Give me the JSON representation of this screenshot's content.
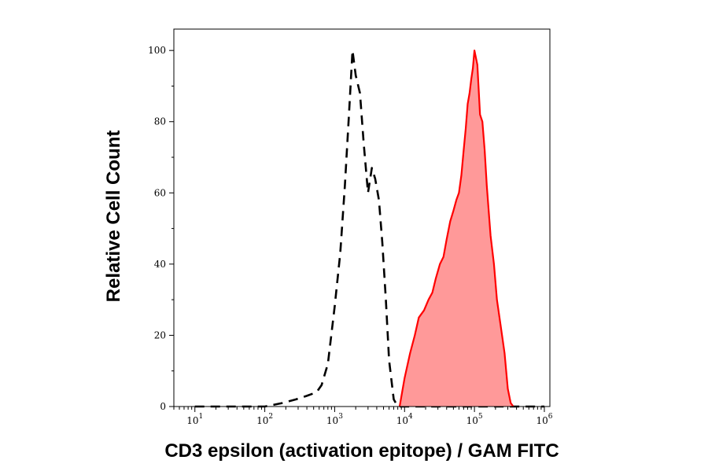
{
  "chart_data": {
    "type": "area",
    "xlabel": "CD3 epsilon (activation epitope) / GAM FITC",
    "ylabel": "Relative Cell Count",
    "x_scale": "log",
    "xlim": [
      5,
      1200000
    ],
    "ylim": [
      0,
      106
    ],
    "x_ticks": [
      {
        "base": "10",
        "exp": "1",
        "value": 10
      },
      {
        "base": "10",
        "exp": "2",
        "value": 100
      },
      {
        "base": "10",
        "exp": "3",
        "value": 1000
      },
      {
        "base": "10",
        "exp": "4",
        "value": 10000
      },
      {
        "base": "10",
        "exp": "5",
        "value": 100000
      },
      {
        "base": "10",
        "exp": "6",
        "value": 1000000
      }
    ],
    "y_ticks": [
      "0",
      "20",
      "40",
      "60",
      "80",
      "100"
    ],
    "y_tick_values": [
      0,
      20,
      40,
      60,
      80,
      100
    ],
    "series": [
      {
        "style": "dashed",
        "color": "#000000",
        "fill": "none",
        "x": [
          10,
          100,
          180,
          280,
          400,
          550,
          650,
          800,
          1000,
          1200,
          1400,
          1600,
          1800,
          2000,
          2300,
          2600,
          3000,
          3400,
          3800,
          4300,
          4800,
          5400,
          6000,
          7000,
          8000,
          10000,
          20000,
          50000,
          100000,
          300000,
          1000000
        ],
        "y": [
          0,
          0,
          1,
          2,
          3,
          4,
          6,
          12,
          28,
          43,
          62,
          82,
          100,
          93,
          88,
          74,
          60,
          67,
          64,
          58,
          46,
          30,
          13,
          2,
          0,
          0,
          0,
          0,
          0,
          0,
          0
        ]
      },
      {
        "style": "solid",
        "color": "#ff0000",
        "fill": "#ff9999",
        "x": [
          8500,
          10000,
          12000,
          14000,
          16000,
          19000,
          22000,
          25000,
          28000,
          32000,
          36000,
          40000,
          45000,
          50000,
          55000,
          60000,
          65000,
          70000,
          75000,
          80000,
          85000,
          90000,
          95000,
          100000,
          110000,
          120000,
          130000,
          140000,
          150000,
          170000,
          190000,
          210000,
          240000,
          270000,
          300000,
          330000,
          360000
        ],
        "y": [
          0,
          8,
          15,
          20,
          25,
          27,
          30,
          32,
          36,
          40,
          42,
          47,
          52,
          55,
          58,
          60,
          65,
          72,
          78,
          85,
          88,
          92,
          95,
          100,
          96,
          82,
          80,
          72,
          62,
          48,
          40,
          30,
          22,
          15,
          5,
          1,
          0
        ]
      }
    ]
  }
}
